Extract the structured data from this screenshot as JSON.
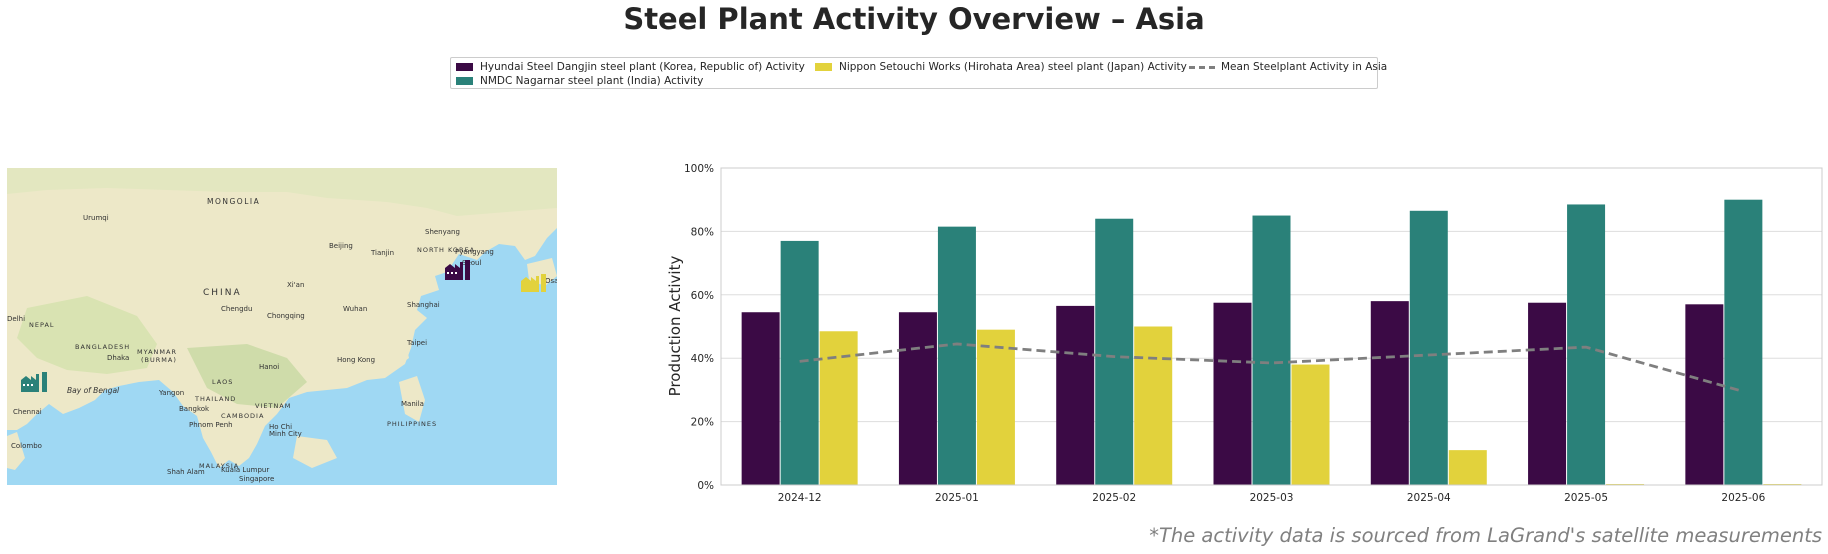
{
  "title": "Steel Plant Activity Overview – Asia",
  "footnote": "*The activity data is sourced from LaGrand's satellite measurements",
  "legend": {
    "items": [
      {
        "label": "Hyundai Steel Dangjin steel plant (Korea, Republic of) Activity",
        "color": "#3b0a45",
        "kind": "bar"
      },
      {
        "label": "Nippon Setouchi Works (Hirohata Area) steel plant (Japan) Activity",
        "color": "#e2d23c",
        "kind": "bar"
      },
      {
        "label": "Mean Steelplant Activity in Asia",
        "color": "#7f7f7f",
        "kind": "dash"
      },
      {
        "label": "NMDC Nagarnar steel plant (India) Activity",
        "color": "#2a8179",
        "kind": "bar"
      }
    ]
  },
  "map": {
    "labels": {
      "mongolia": "MONGOLIA",
      "china": "CHINA",
      "north_korea": "NORTH KOREA",
      "nepal": "NEPAL",
      "bangladesh": "BANGLADESH",
      "myanmar": "MYANMAR",
      "burma": "(BURMA)",
      "laos": "LAOS",
      "thailand": "THAILAND",
      "vietnam": "VIETNAM",
      "cambodia": "CAMBODIA",
      "philippines": "PHILIPPINES",
      "malaysia": "MALAYSIA",
      "bay_of_bengal": "Bay of Bengal",
      "urumqi": "Urumqi",
      "beijing": "Beijing",
      "tianjin": "Tianjin",
      "shenyang": "Shenyang",
      "pyongyang": "Pyongyang",
      "seoul": "Seoul",
      "xian": "Xi'an",
      "chengdu": "Chengdu",
      "chongqing": "Chongqing",
      "wuhan": "Wuhan",
      "shanghai": "Shanghai",
      "taipei": "Taipei",
      "hong_kong": "Hong Kong",
      "hanoi": "Hanoi",
      "dhaka": "Dhaka",
      "delhi": "Delhi",
      "yangon": "Yangon",
      "bangkok": "Bangkok",
      "phnom_penh": "Phnom Penh",
      "ho_chi_minh": "Ho Chi",
      "ho_chi_minh2": "Minh City",
      "manila": "Manila",
      "chennai": "Chennai",
      "colombo": "Colombo",
      "shah_alam": "Shah Alam",
      "kuala_lumpur": "Kuala Lumpur",
      "singapore": "Singapore",
      "osaka": "Osa"
    },
    "colors": {
      "land": "#ede8c8",
      "sea": "#9fd8f3",
      "green": "#cfdcaa"
    },
    "markers": [
      {
        "name": "hyundai-plant-marker",
        "color": "#3b0a45"
      },
      {
        "name": "nippon-plant-marker",
        "color": "#e2d23c"
      },
      {
        "name": "nmdc-plant-marker",
        "color": "#2a8179"
      }
    ]
  },
  "chart_data": {
    "type": "bar",
    "ylabel": "Production Activity",
    "categories": [
      "2024-12",
      "2025-01",
      "2025-02",
      "2025-03",
      "2025-04",
      "2025-05",
      "2025-06"
    ],
    "ylim": [
      0,
      100
    ],
    "yticks": [
      0,
      20,
      40,
      60,
      80,
      100
    ],
    "ytick_labels": [
      "0%",
      "20%",
      "40%",
      "60%",
      "80%",
      "100%"
    ],
    "grid": true,
    "series": [
      {
        "name": "Hyundai Steel Dangjin steel plant (Korea, Republic of) Activity",
        "color": "#3b0a45",
        "values": [
          54.5,
          54.5,
          56.5,
          57.5,
          58.0,
          57.5,
          57.0
        ]
      },
      {
        "name": "NMDC Nagarnar steel plant (India) Activity",
        "color": "#2a8179",
        "values": [
          77.0,
          81.5,
          84.0,
          85.0,
          86.5,
          88.5,
          90.0
        ]
      },
      {
        "name": "Nippon Setouchi Works (Hirohata Area) steel plant (Japan) Activity",
        "color": "#e2d23c",
        "values": [
          48.5,
          49.0,
          50.0,
          38.0,
          11.0,
          0.3,
          0.3
        ]
      }
    ],
    "mean_line": {
      "name": "Mean Steelplant Activity in Asia",
      "color": "#7f7f7f",
      "values": [
        39.0,
        44.5,
        40.5,
        38.5,
        41.0,
        43.5,
        29.5
      ]
    }
  }
}
